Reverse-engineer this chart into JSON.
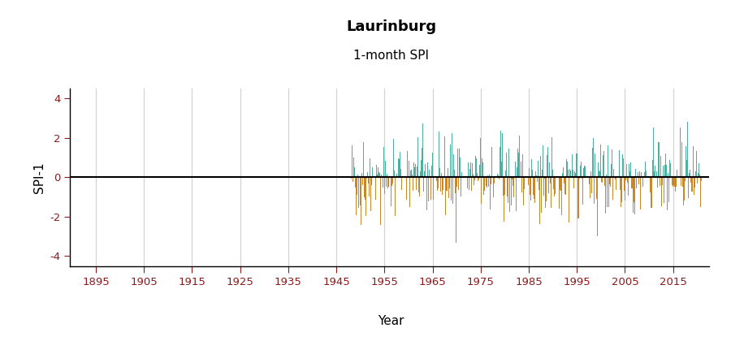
{
  "title": "Laurinburg",
  "subtitle": "1-month SPI",
  "xlabel": "Year",
  "ylabel": "SPI-1",
  "ylim": [
    -4.5,
    4.5
  ],
  "yticks": [
    -4,
    -2,
    0,
    2,
    4
  ],
  "xlim": [
    1889.5,
    2022.5
  ],
  "xticks": [
    1895,
    1905,
    1915,
    1925,
    1935,
    1945,
    1955,
    1965,
    1975,
    1985,
    1995,
    2005,
    2015
  ],
  "data_start_year": 1948,
  "data_end_year": 2020,
  "color_positive": "#4DAFA0",
  "color_negative": "#C8882A",
  "color_zero_line": "#000000",
  "background_color": "#ffffff",
  "grid_color": "#d3d3d3",
  "title_fontsize": 13,
  "subtitle_fontsize": 11,
  "axis_label_fontsize": 11,
  "tick_fontsize": 9.5,
  "tick_color": "#8B1A1A",
  "random_seed": 42
}
